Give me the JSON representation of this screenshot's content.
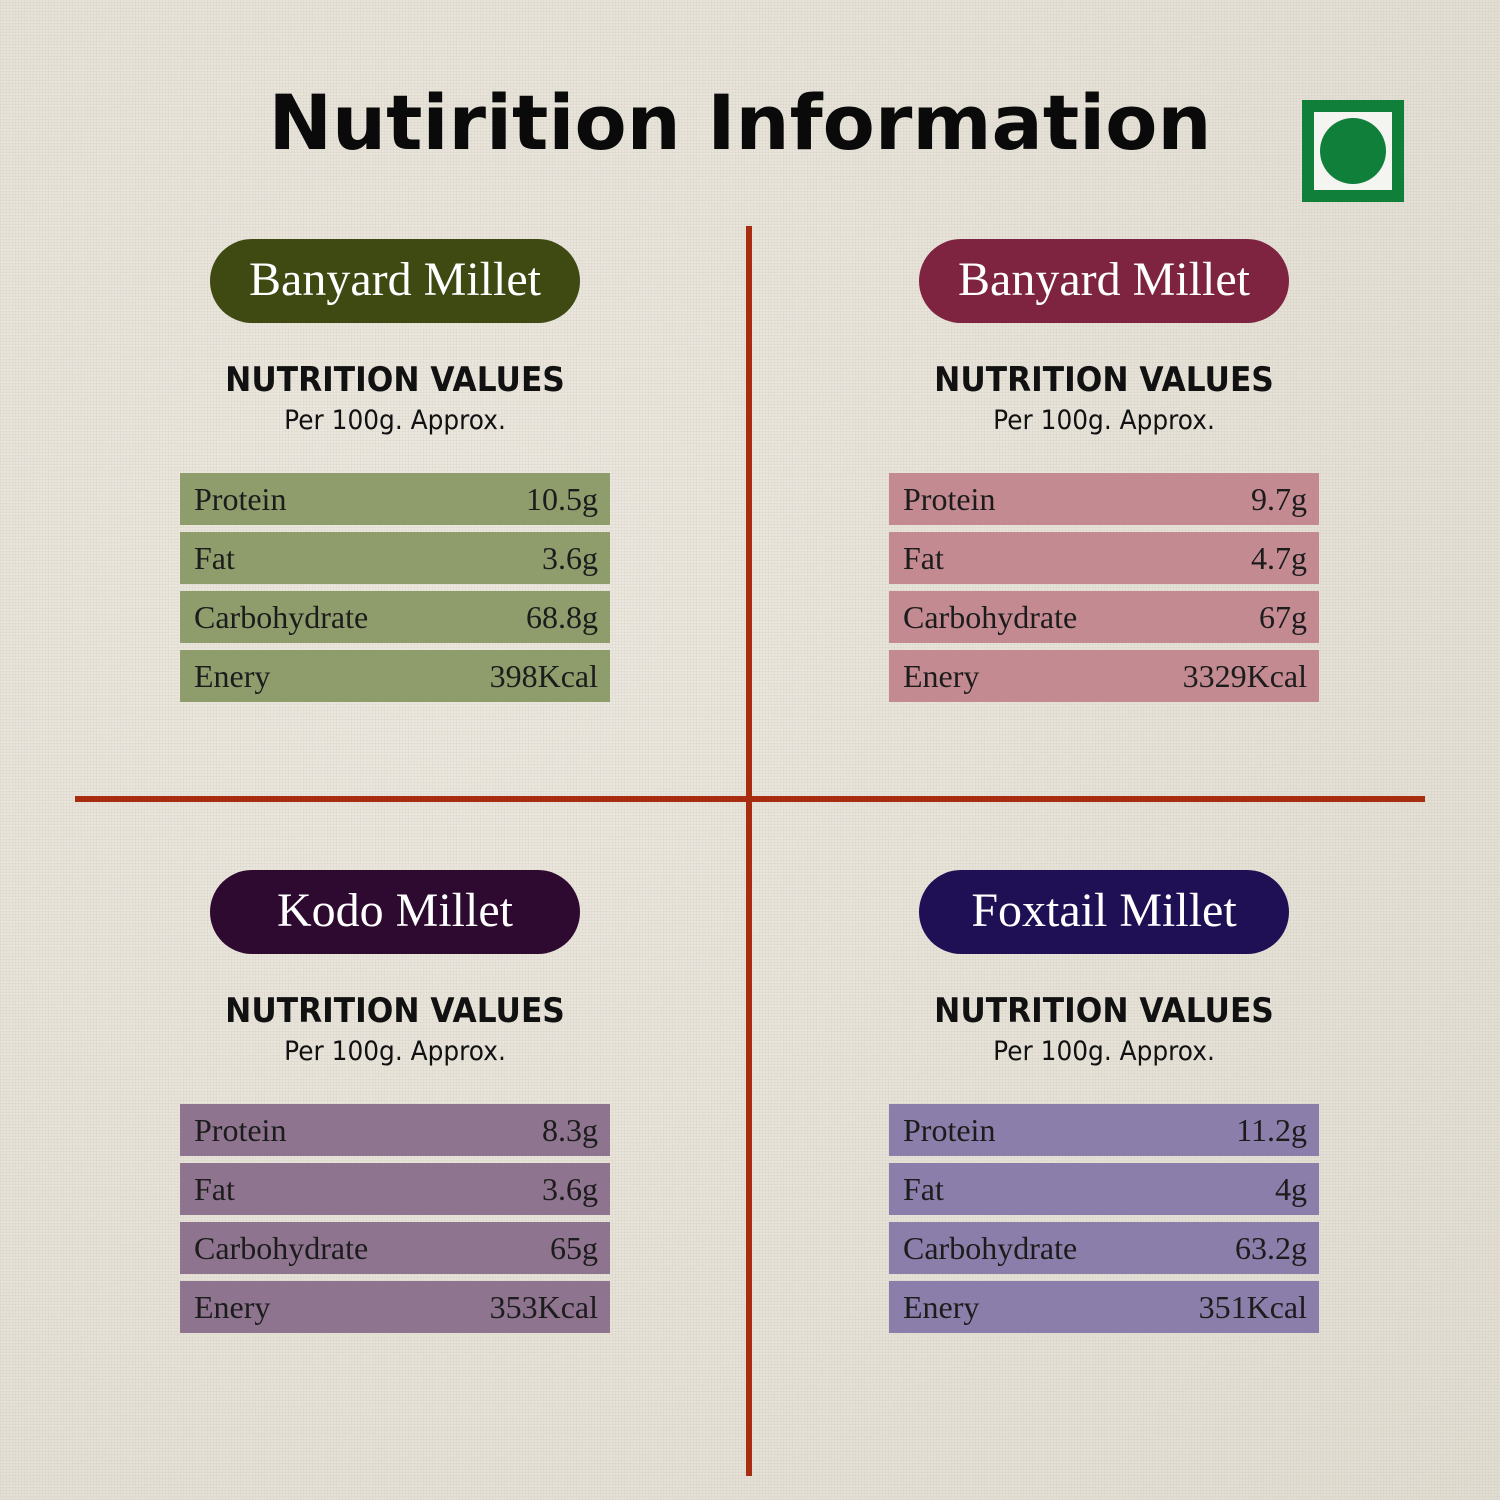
{
  "title": "Nutirition Information",
  "veg_icon": "veg-mark-icon",
  "colors": {
    "divider": "#a82c10",
    "veg_mark": "#0f7f3a"
  },
  "panels": [
    {
      "name": "Banyard Millet",
      "heading": "NUTRITION VALUES",
      "subheading": "Per 100g. Approx.",
      "pill_color": "#3e4a12",
      "row_color": "#8f9d6c",
      "rows": [
        {
          "label": "Protein",
          "value": "10.5g"
        },
        {
          "label": "Fat",
          "value": "3.6g"
        },
        {
          "label": "Carbohydrate",
          "value": "68.8g"
        },
        {
          "label": "Enery",
          "value": "398Kcal"
        }
      ]
    },
    {
      "name": "Banyard Millet",
      "heading": "NUTRITION VALUES",
      "subheading": "Per 100g. Approx.",
      "pill_color": "#7e2340",
      "row_color": "#c48a92",
      "rows": [
        {
          "label": "Protein",
          "value": "9.7g"
        },
        {
          "label": "Fat",
          "value": "4.7g"
        },
        {
          "label": "Carbohydrate",
          "value": "67g"
        },
        {
          "label": "Enery",
          "value": "3329Kcal"
        }
      ]
    },
    {
      "name": "Kodo Millet",
      "heading": "NUTRITION VALUES",
      "subheading": "Per 100g. Approx.",
      "pill_color": "#2e0a30",
      "row_color": "#8f7490",
      "rows": [
        {
          "label": "Protein",
          "value": "8.3g"
        },
        {
          "label": "Fat",
          "value": "3.6g"
        },
        {
          "label": "Carbohydrate",
          "value": "65g"
        },
        {
          "label": "Enery",
          "value": "353Kcal"
        }
      ]
    },
    {
      "name": "Foxtail Millet",
      "heading": "NUTRITION VALUES",
      "subheading": "Per 100g. Approx.",
      "pill_color": "#1f0f55",
      "row_color": "#8c7eab",
      "rows": [
        {
          "label": "Protein",
          "value": "11.2g"
        },
        {
          "label": "Fat",
          "value": "4g"
        },
        {
          "label": "Carbohydrate",
          "value": "63.2g"
        },
        {
          "label": "Enery",
          "value": "351Kcal"
        }
      ]
    }
  ]
}
